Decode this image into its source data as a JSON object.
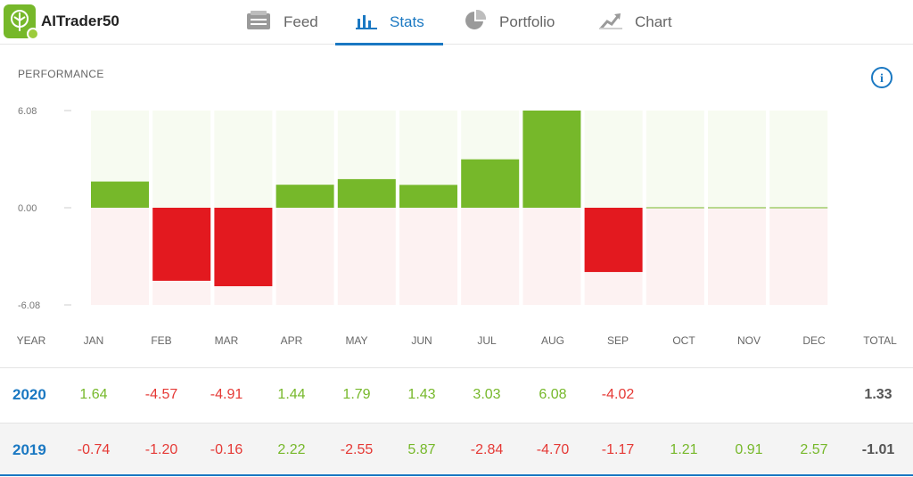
{
  "app": {
    "name": "AITrader50"
  },
  "nav": {
    "tabs": [
      {
        "label": "Feed",
        "icon": "feed-icon"
      },
      {
        "label": "Stats",
        "icon": "bar-chart-icon",
        "active": true
      },
      {
        "label": "Portfolio",
        "icon": "pie-chart-icon"
      },
      {
        "label": "Chart",
        "icon": "trend-chart-icon"
      }
    ]
  },
  "performance": {
    "title": "PERFORMANCE",
    "info_label": "i"
  },
  "chart_data": {
    "type": "bar",
    "categories": [
      "JAN",
      "FEB",
      "MAR",
      "APR",
      "MAY",
      "JUN",
      "JUL",
      "AUG",
      "SEP",
      "OCT",
      "NOV",
      "DEC"
    ],
    "values": [
      1.64,
      -4.57,
      -4.91,
      1.44,
      1.79,
      1.43,
      3.03,
      6.08,
      -4.02,
      0,
      0,
      0
    ],
    "ylim": [
      -6.08,
      6.08
    ],
    "ytick_labels": [
      "6.08",
      "0.00",
      "-6.08"
    ],
    "positive_color": "#76b82a",
    "negative_color": "#e3191f"
  },
  "table": {
    "headers": {
      "year": "YEAR",
      "months": [
        "JAN",
        "FEB",
        "MAR",
        "APR",
        "MAY",
        "JUN",
        "JUL",
        "AUG",
        "SEP",
        "OCT",
        "NOV",
        "DEC"
      ],
      "total": "TOTAL"
    },
    "rows": [
      {
        "year": "2020",
        "values": [
          "1.64",
          "-4.57",
          "-4.91",
          "1.44",
          "1.79",
          "1.43",
          "3.03",
          "6.08",
          "-4.02",
          "",
          "",
          ""
        ],
        "total": "1.33"
      },
      {
        "year": "2019",
        "values": [
          "-0.74",
          "-1.20",
          "-0.16",
          "2.22",
          "-2.55",
          "5.87",
          "-2.84",
          "-4.70",
          "-1.17",
          "1.21",
          "0.91",
          "2.57"
        ],
        "total": "-1.01"
      }
    ]
  }
}
